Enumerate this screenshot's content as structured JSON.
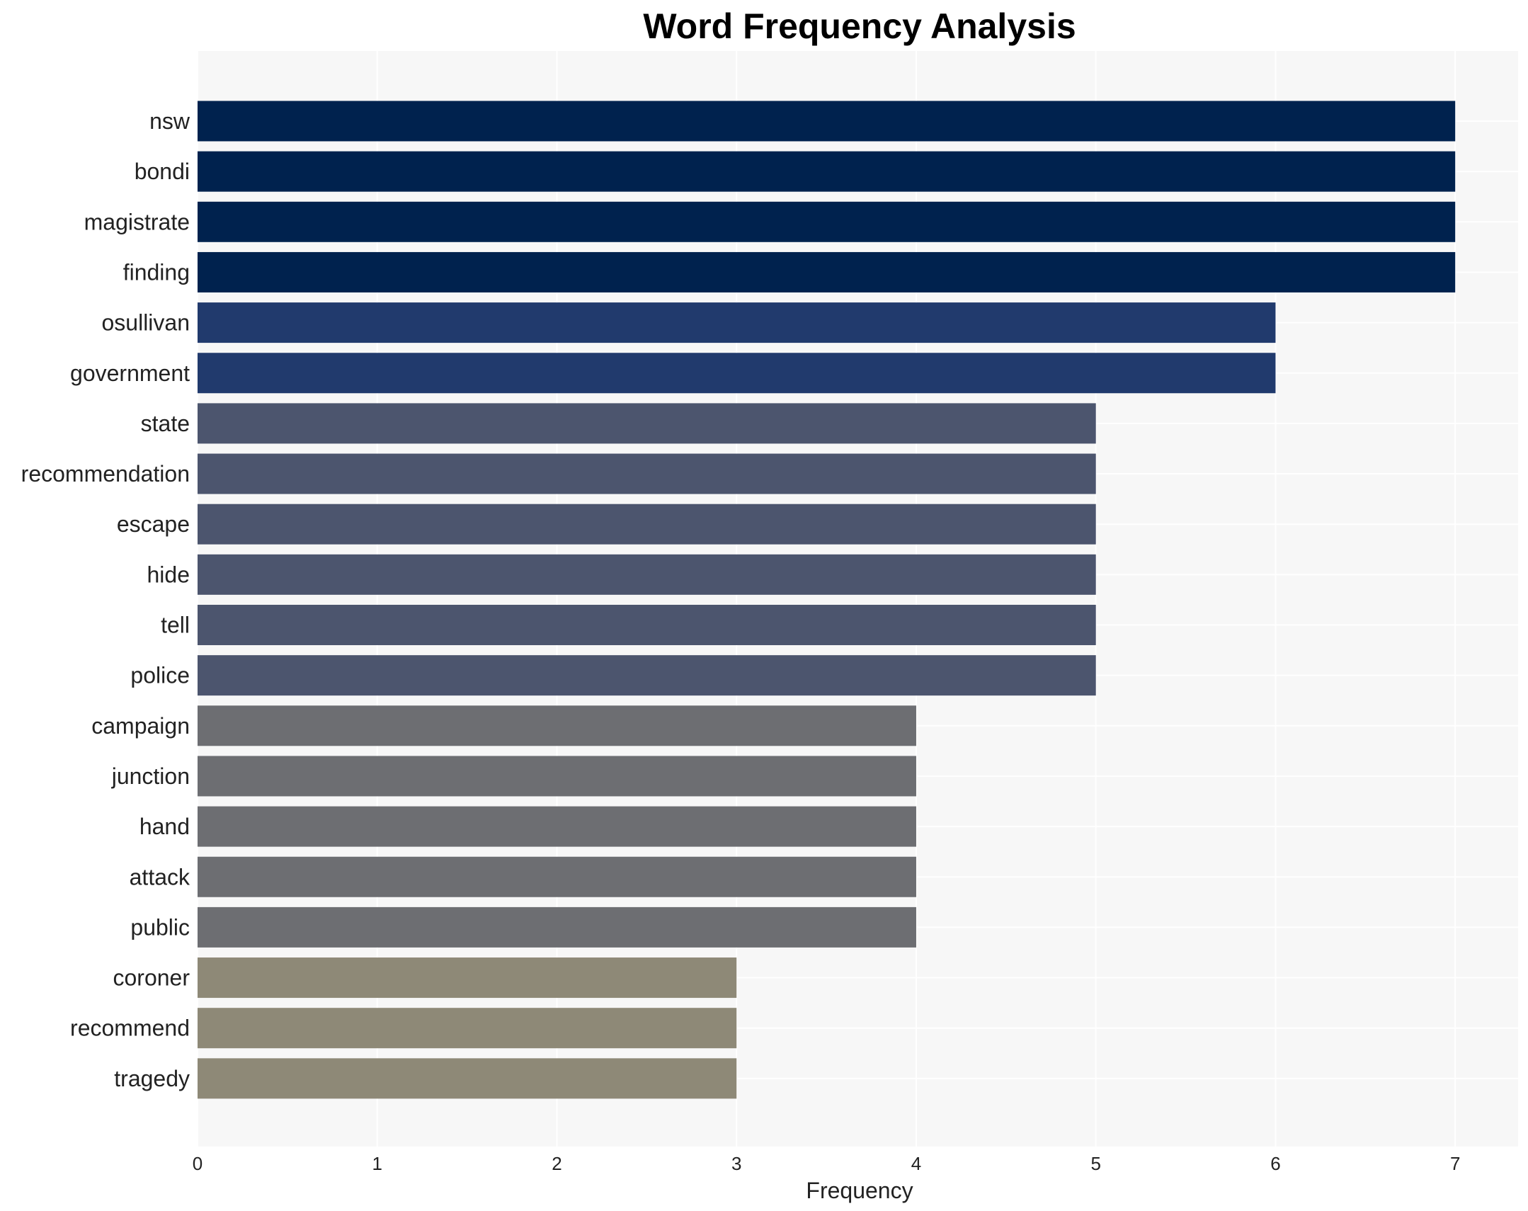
{
  "chart_data": {
    "type": "bar",
    "orientation": "horizontal",
    "title": "Word Frequency Analysis",
    "xlabel": "Frequency",
    "ylabel": "",
    "xlim": [
      0,
      7.35
    ],
    "xticks": [
      0,
      1,
      2,
      3,
      4,
      5,
      6,
      7
    ],
    "grid": true,
    "categories": [
      "nsw",
      "bondi",
      "magistrate",
      "finding",
      "osullivan",
      "government",
      "state",
      "recommendation",
      "escape",
      "hide",
      "tell",
      "police",
      "campaign",
      "junction",
      "hand",
      "attack",
      "public",
      "coroner",
      "recommend",
      "tragedy"
    ],
    "values": [
      7,
      7,
      7,
      7,
      6,
      6,
      5,
      5,
      5,
      5,
      5,
      5,
      4,
      4,
      4,
      4,
      4,
      3,
      3,
      3
    ],
    "value_colors": {
      "7": "#00224e",
      "6": "#213a6d",
      "5": "#4c556e",
      "4": "#6d6e72",
      "3": "#8e8977"
    },
    "plot_background": "#f7f7f7",
    "grid_color": "#ffffff"
  }
}
